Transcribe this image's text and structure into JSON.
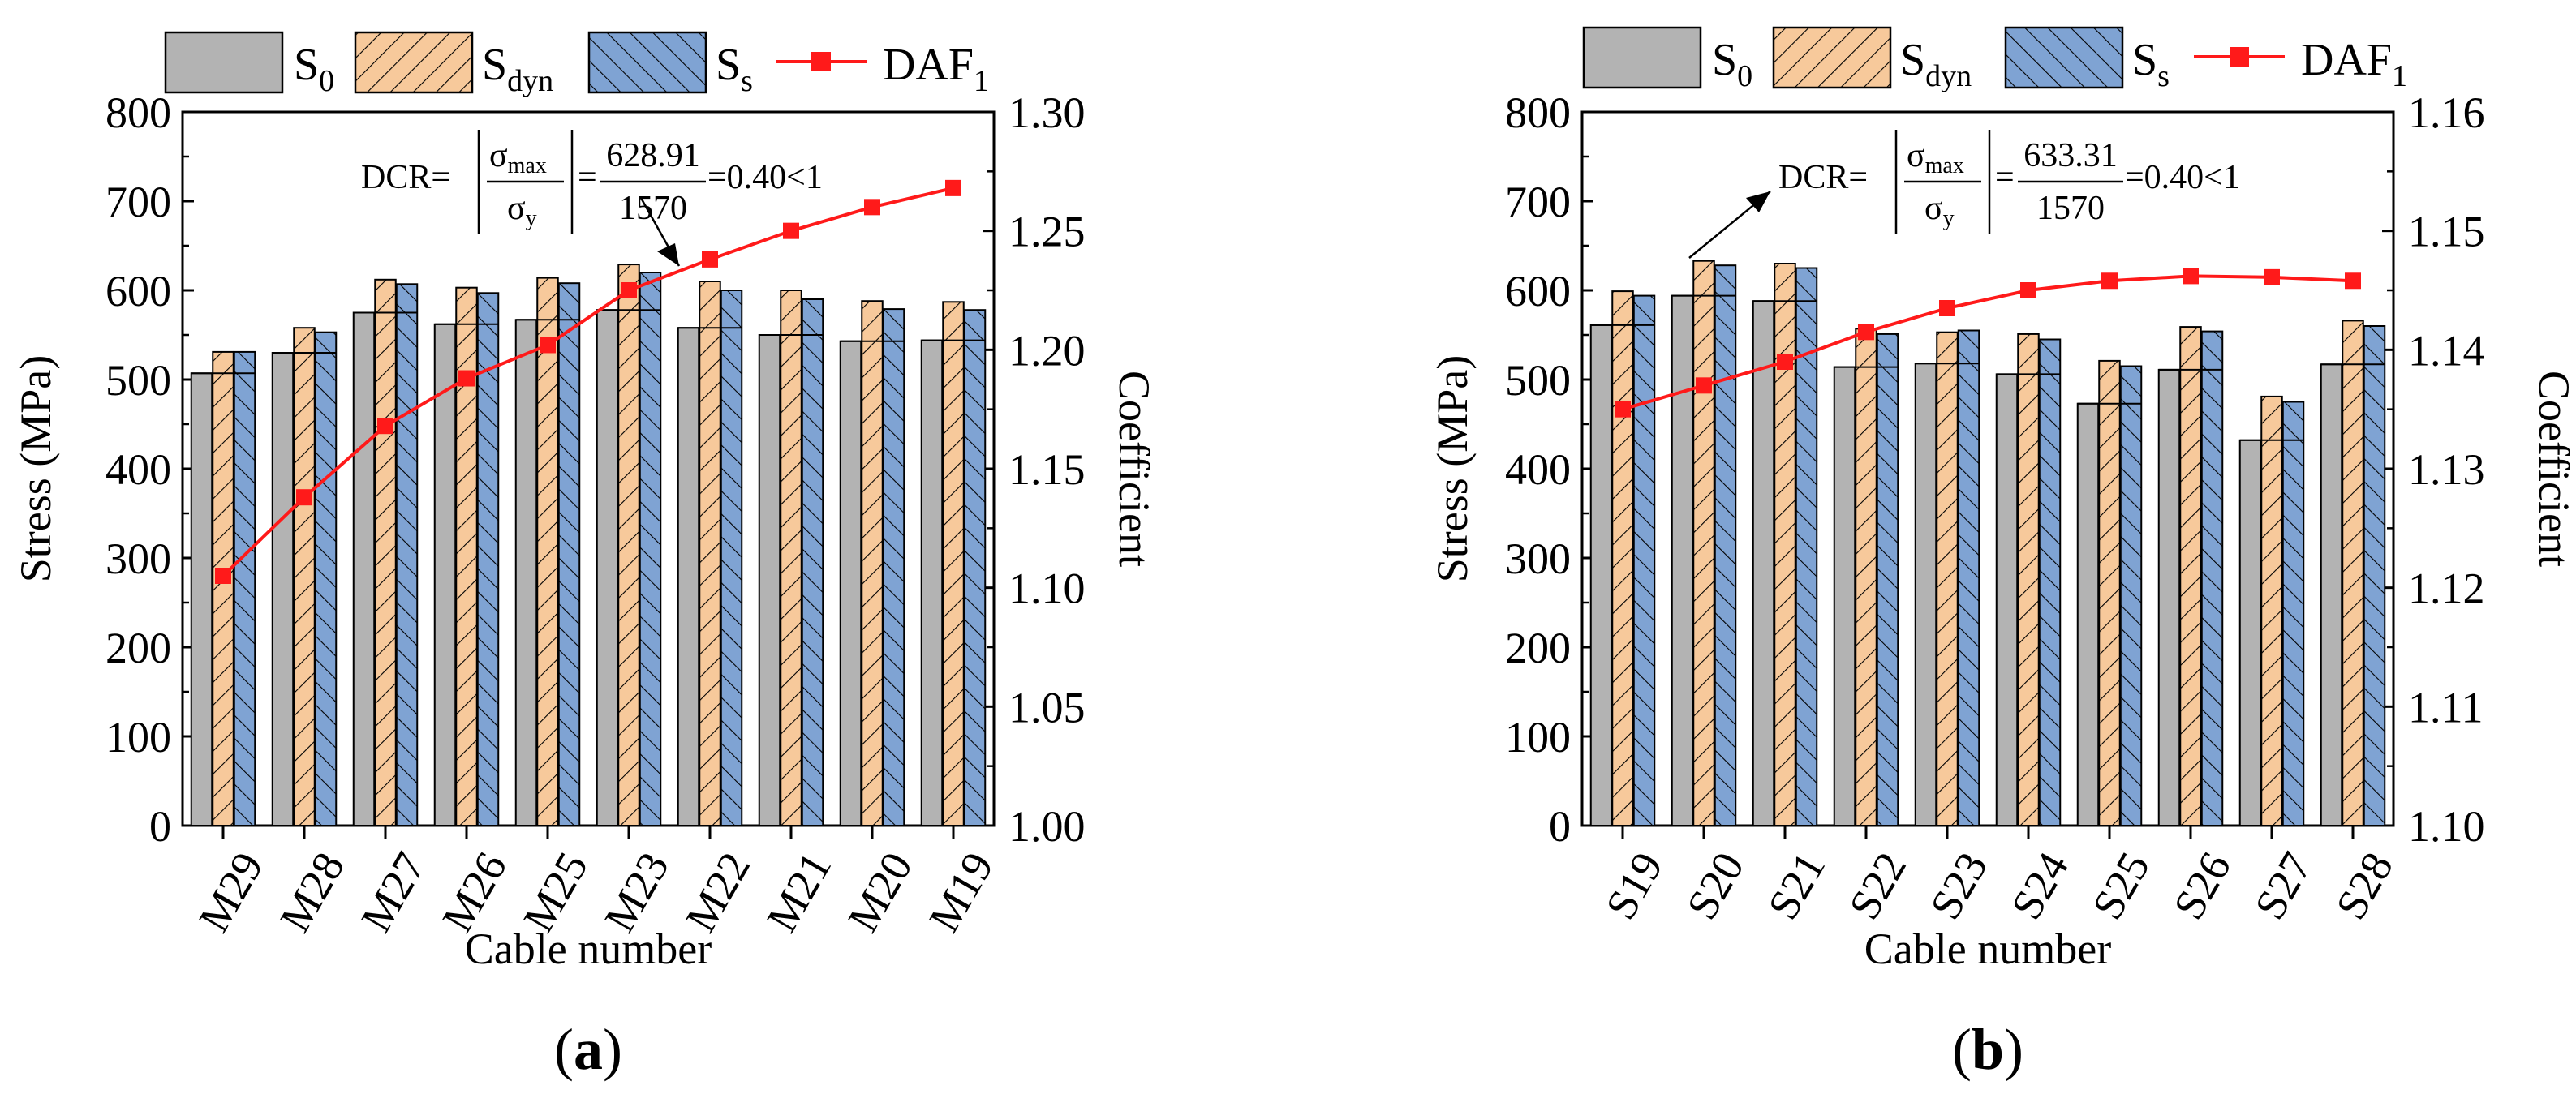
{
  "legend": {
    "s0": {
      "main": "S",
      "sub": "0"
    },
    "sdyn": {
      "main": "S",
      "sub": "dyn"
    },
    "ss": {
      "main": "S",
      "sub": "s"
    },
    "daf": {
      "main": "DAF",
      "sub": "1"
    }
  },
  "colors": {
    "s0": "#b3b3b3",
    "sdyn": "#f7c99b",
    "ss": "#7fa3d3",
    "daf": "#ff1a1a"
  },
  "chart_data": [
    {
      "type": "bar",
      "panel_label": "a",
      "xlabel": "Cable number",
      "ylabel": "Stress (MPa)",
      "y2label": "Coefficient",
      "ylim": [
        0,
        800
      ],
      "y2lim": [
        1.0,
        1.3
      ],
      "yticks": [
        "0",
        "100",
        "200",
        "300",
        "400",
        "500",
        "600",
        "700",
        "800"
      ],
      "y2ticks": [
        "1.00",
        "1.05",
        "1.10",
        "1.15",
        "1.20",
        "1.25",
        "1.30"
      ],
      "categories": [
        "M29",
        "M28",
        "M27",
        "M26",
        "M25",
        "M23",
        "M22",
        "M21",
        "M20",
        "M19"
      ],
      "series": [
        {
          "name": "S0",
          "values": [
            507,
            530,
            575,
            562,
            567,
            578,
            558,
            550,
            543,
            544
          ]
        },
        {
          "name": "Sdyn",
          "values": [
            531,
            558,
            612,
            603,
            614,
            629,
            610,
            600,
            588,
            587
          ]
        },
        {
          "name": "Ss",
          "values": [
            531,
            553,
            607,
            597,
            608,
            620,
            600,
            590,
            579,
            578
          ]
        }
      ],
      "line_series": {
        "name": "DAF1",
        "axis": "right",
        "values": [
          1.105,
          1.138,
          1.168,
          1.188,
          1.202,
          1.225,
          1.238,
          1.25,
          1.26,
          1.268
        ]
      },
      "annotation": {
        "lhs": "DCR=",
        "num_sym": "σ",
        "num_sub": "max",
        "den_sym": "σ",
        "den_sub": "y",
        "value_num": "628.91",
        "value_den": "1570",
        "result": "=0.40<1"
      }
    },
    {
      "type": "bar",
      "panel_label": "b",
      "xlabel": "Cable number",
      "ylabel": "Stress (MPa)",
      "y2label": "Coefficient",
      "ylim": [
        0,
        800
      ],
      "y2lim": [
        1.1,
        1.16
      ],
      "yticks": [
        "0",
        "100",
        "200",
        "300",
        "400",
        "500",
        "600",
        "700",
        "800"
      ],
      "y2ticks": [
        "1.10",
        "1.11",
        "1.12",
        "1.13",
        "1.14",
        "1.15",
        "1.16"
      ],
      "categories": [
        "S19",
        "S20",
        "S21",
        "S22",
        "S23",
        "S24",
        "S25",
        "S26",
        "S27",
        "S28"
      ],
      "series": [
        {
          "name": "S0",
          "values": [
            561,
            594,
            588,
            514,
            518,
            506,
            473,
            511,
            432,
            517
          ]
        },
        {
          "name": "Sdyn",
          "values": [
            599,
            633,
            630,
            557,
            553,
            551,
            521,
            559,
            481,
            566
          ]
        },
        {
          "name": "Ss",
          "values": [
            594,
            628,
            625,
            551,
            555,
            545,
            515,
            554,
            475,
            560
          ]
        }
      ],
      "line_series": {
        "name": "DAF1",
        "axis": "right",
        "values": [
          1.135,
          1.137,
          1.139,
          1.1415,
          1.1435,
          1.145,
          1.1458,
          1.1462,
          1.1461,
          1.1458
        ]
      },
      "annotation": {
        "lhs": "DCR=",
        "num_sym": "σ",
        "num_sub": "max",
        "den_sym": "σ",
        "den_sub": "y",
        "value_num": "633.31",
        "value_den": "1570",
        "result": "=0.40<1"
      }
    }
  ]
}
